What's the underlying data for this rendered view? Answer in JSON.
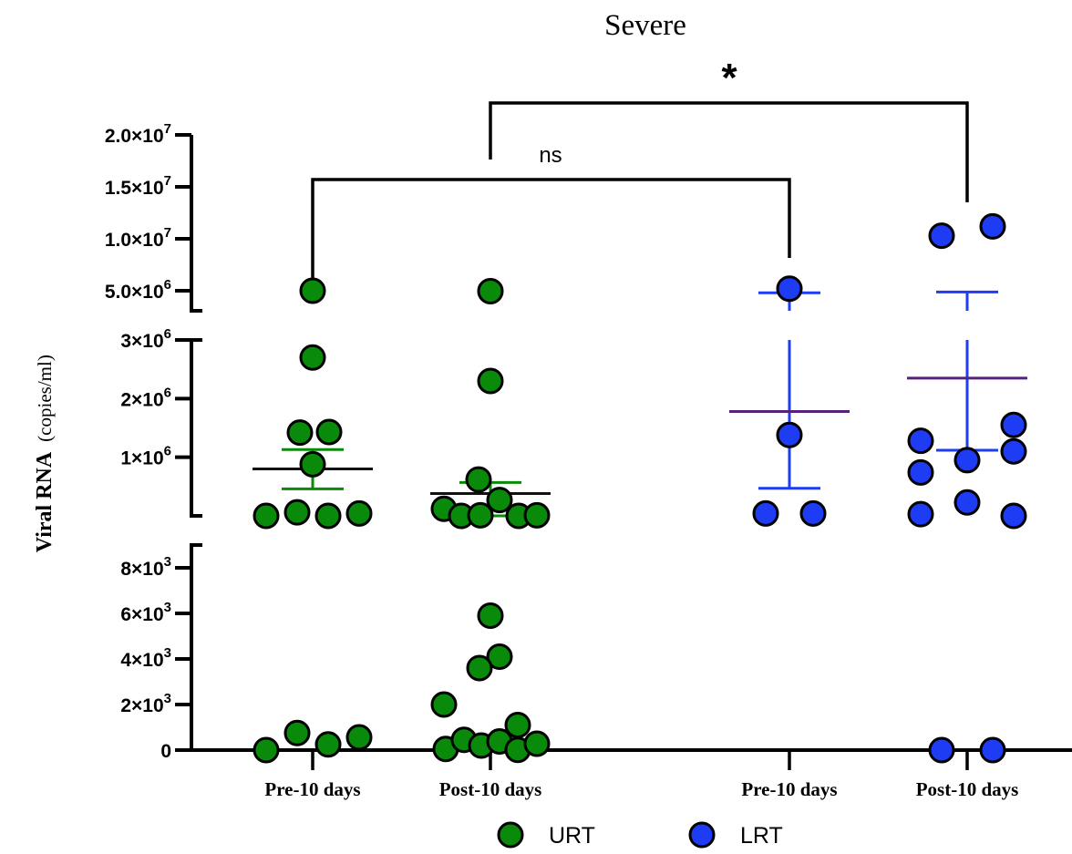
{
  "chart_data": {
    "type": "scatter",
    "title": "Severe",
    "ylabel_main": "Viral RNA",
    "ylabel_sub": "(copies/ml)",
    "categories": [
      "Pre-10 days",
      "Post-10 days",
      "Pre-10 days",
      "Post-10 days"
    ],
    "segments": [
      {
        "name": "top",
        "ylim": [
          0,
          20000000
        ],
        "ticks": [
          {
            "value": 5000000,
            "base": "5.0×10",
            "exp": "6"
          },
          {
            "value": 10000000,
            "base": "1.0×10",
            "exp": "7"
          },
          {
            "value": 15000000,
            "base": "1.5×10",
            "exp": "7"
          },
          {
            "value": 20000000,
            "base": "2.0×10",
            "exp": "7"
          }
        ]
      },
      {
        "name": "middle",
        "ylim": [
          0,
          3000000
        ],
        "ticks": [
          {
            "value": 1000000,
            "base": "1×10",
            "exp": "6"
          },
          {
            "value": 2000000,
            "base": "2×10",
            "exp": "6"
          },
          {
            "value": 3000000,
            "base": "3×10",
            "exp": "6"
          }
        ]
      },
      {
        "name": "bottom",
        "ylim": [
          0,
          9000
        ],
        "ticks": [
          {
            "value": 0,
            "base": "0",
            "exp": ""
          },
          {
            "value": 2000,
            "base": "2×10",
            "exp": "3"
          },
          {
            "value": 4000,
            "base": "4×10",
            "exp": "3"
          },
          {
            "value": 6000,
            "base": "6×10",
            "exp": "3"
          },
          {
            "value": 8000,
            "base": "8×10",
            "exp": "3"
          }
        ]
      }
    ],
    "series": [
      {
        "name": "URT",
        "color": "#0a8a0a",
        "points": [
          {
            "cat": 0,
            "dx": 0,
            "seg": "top",
            "y": 5000000
          },
          {
            "cat": 0,
            "dx": 0,
            "seg": "middle",
            "y": 2700000
          },
          {
            "cat": 0,
            "dx": -14,
            "seg": "middle",
            "y": 1420000
          },
          {
            "cat": 0,
            "dx": 18,
            "seg": "middle",
            "y": 1430000
          },
          {
            "cat": 0,
            "dx": 0,
            "seg": "middle",
            "y": 880000
          },
          {
            "cat": 0,
            "dx": -51,
            "seg": "middle",
            "y": 0
          },
          {
            "cat": 0,
            "dx": -17,
            "seg": "middle",
            "y": 60000
          },
          {
            "cat": 0,
            "dx": 17,
            "seg": "middle",
            "y": 0
          },
          {
            "cat": 0,
            "dx": 51,
            "seg": "middle",
            "y": 40000
          },
          {
            "cat": 0,
            "dx": -51,
            "seg": "bottom",
            "y": 0
          },
          {
            "cat": 0,
            "dx": -17,
            "seg": "bottom",
            "y": 750
          },
          {
            "cat": 0,
            "dx": 17,
            "seg": "bottom",
            "y": 250
          },
          {
            "cat": 0,
            "dx": 51,
            "seg": "bottom",
            "y": 560
          },
          {
            "cat": 1,
            "dx": 0,
            "seg": "top",
            "y": 4900000
          },
          {
            "cat": 1,
            "dx": 0,
            "seg": "middle",
            "y": 2300000
          },
          {
            "cat": 1,
            "dx": -13,
            "seg": "middle",
            "y": 620000
          },
          {
            "cat": 1,
            "dx": 10,
            "seg": "middle",
            "y": 270000
          },
          {
            "cat": 1,
            "dx": -51,
            "seg": "middle",
            "y": 120000
          },
          {
            "cat": 1,
            "dx": -32,
            "seg": "middle",
            "y": 0
          },
          {
            "cat": 1,
            "dx": -11,
            "seg": "middle",
            "y": 10000
          },
          {
            "cat": 1,
            "dx": 31,
            "seg": "middle",
            "y": 0
          },
          {
            "cat": 1,
            "dx": 51,
            "seg": "middle",
            "y": 10000
          },
          {
            "cat": 1,
            "dx": 0,
            "seg": "bottom",
            "y": 5900
          },
          {
            "cat": 1,
            "dx": 10,
            "seg": "bottom",
            "y": 4100
          },
          {
            "cat": 1,
            "dx": -12,
            "seg": "bottom",
            "y": 3600
          },
          {
            "cat": 1,
            "dx": -51,
            "seg": "bottom",
            "y": 2000
          },
          {
            "cat": 1,
            "dx": 30,
            "seg": "bottom",
            "y": 1100
          },
          {
            "cat": 1,
            "dx": -49,
            "seg": "bottom",
            "y": 50
          },
          {
            "cat": 1,
            "dx": -29,
            "seg": "bottom",
            "y": 450
          },
          {
            "cat": 1,
            "dx": -10,
            "seg": "bottom",
            "y": 200
          },
          {
            "cat": 1,
            "dx": 10,
            "seg": "bottom",
            "y": 380
          },
          {
            "cat": 1,
            "dx": 30,
            "seg": "bottom",
            "y": 10
          },
          {
            "cat": 1,
            "dx": 51,
            "seg": "bottom",
            "y": 280
          }
        ],
        "summaries": [
          {
            "cat": 0,
            "mean": 800000,
            "upper": 1130000,
            "lower": 460000
          },
          {
            "cat": 1,
            "mean": 380000,
            "upper": 570000,
            "lower": 0
          }
        ]
      },
      {
        "name": "LRT",
        "color": "#1f3cf5",
        "points": [
          {
            "cat": 2,
            "dx": 0,
            "seg": "top",
            "y": 5200000
          },
          {
            "cat": 2,
            "dx": 0,
            "seg": "middle",
            "y": 1380000
          },
          {
            "cat": 2,
            "dx": -26,
            "seg": "middle",
            "y": 40000
          },
          {
            "cat": 2,
            "dx": 26,
            "seg": "middle",
            "y": 40000
          },
          {
            "cat": 3,
            "dx": -28,
            "seg": "top",
            "y": 10300000
          },
          {
            "cat": 3,
            "dx": 28,
            "seg": "top",
            "y": 11200000
          },
          {
            "cat": 3,
            "dx": -51,
            "seg": "middle",
            "y": 1280000
          },
          {
            "cat": 3,
            "dx": 51,
            "seg": "middle",
            "y": 1550000
          },
          {
            "cat": 3,
            "dx": 51,
            "seg": "middle",
            "y": 1100000
          },
          {
            "cat": 3,
            "dx": 0,
            "seg": "middle",
            "y": 950000
          },
          {
            "cat": 3,
            "dx": -51,
            "seg": "middle",
            "y": 740000
          },
          {
            "cat": 3,
            "dx": 0,
            "seg": "middle",
            "y": 230000
          },
          {
            "cat": 3,
            "dx": -51,
            "seg": "middle",
            "y": 30000
          },
          {
            "cat": 3,
            "dx": 51,
            "seg": "middle",
            "y": 0
          },
          {
            "cat": 3,
            "dx": -28,
            "seg": "bottom",
            "y": 0
          },
          {
            "cat": 3,
            "dx": 28,
            "seg": "bottom",
            "y": 0
          }
        ],
        "summaries": [
          {
            "cat": 2,
            "mean": 1780000,
            "upper": 4500000,
            "lower": 470000
          },
          {
            "cat": 3,
            "mean": 2350000,
            "upper": 4700000,
            "lower": 1120000
          }
        ]
      }
    ],
    "mean_color": "#55237e",
    "urt_mean_color": "#111111",
    "significance": [
      {
        "from": 0,
        "to": 2,
        "label": "ns"
      },
      {
        "from": 1,
        "to": 3,
        "label": "*"
      }
    ],
    "legend": [
      "URT",
      "LRT"
    ],
    "legend_position": "bottom"
  }
}
